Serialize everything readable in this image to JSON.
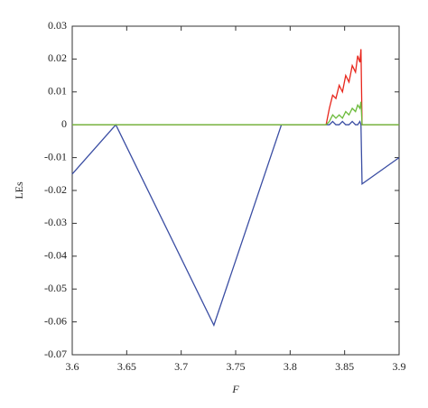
{
  "chart_data": {
    "type": "line",
    "xlabel": "F",
    "ylabel": "LEs",
    "x": [
      3.6,
      3.64,
      3.73,
      3.792,
      3.833,
      3.836,
      3.839,
      3.842,
      3.845,
      3.848,
      3.851,
      3.854,
      3.857,
      3.86,
      3.862,
      3.864,
      3.865,
      3.866,
      3.9
    ],
    "series": [
      {
        "color": "#3b4ea3",
        "values": [
          -0.015,
          0,
          -0.061,
          0,
          0,
          0,
          0.001,
          0,
          0,
          0.001,
          0,
          0,
          0.001,
          0,
          0,
          0.001,
          0,
          -0.018,
          -0.01
        ]
      },
      {
        "color": "#e8261c",
        "values": [
          0,
          0,
          0,
          0,
          0,
          0.005,
          0.009,
          0.008,
          0.012,
          0.01,
          0.015,
          0.013,
          0.018,
          0.016,
          0.021,
          0.019,
          0.023,
          0,
          0
        ]
      },
      {
        "color": "#6cbb3c",
        "values": [
          0,
          0,
          0,
          0,
          0,
          0.001,
          0.003,
          0.002,
          0.003,
          0.002,
          0.004,
          0.003,
          0.005,
          0.004,
          0.006,
          0.005,
          0.007,
          0,
          0
        ]
      }
    ],
    "xlim": [
      3.6,
      3.9
    ],
    "xticks": [
      3.6,
      3.65,
      3.7,
      3.75,
      3.8,
      3.85,
      3.9
    ],
    "ylim": [
      -0.07,
      0.03
    ],
    "yticks": [
      -0.07,
      -0.06,
      -0.05,
      -0.04,
      -0.03,
      -0.02,
      -0.01,
      0,
      0.01,
      0.02,
      0.03
    ]
  }
}
